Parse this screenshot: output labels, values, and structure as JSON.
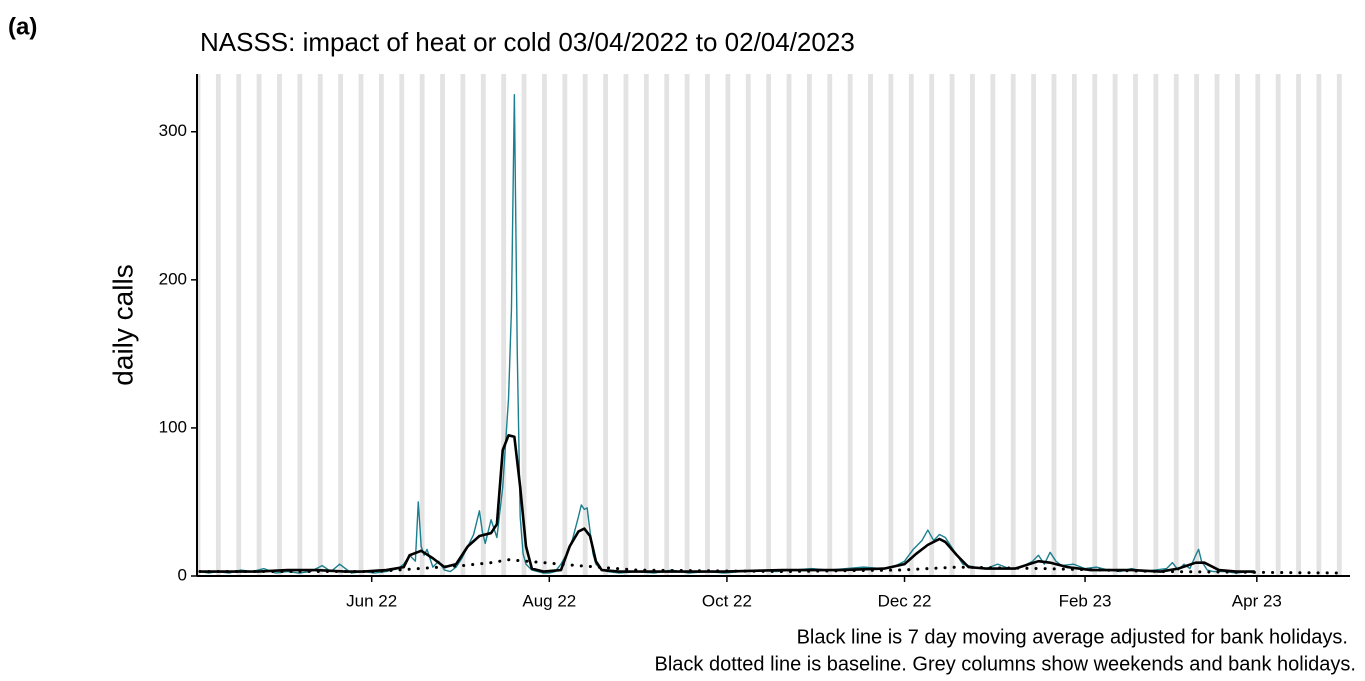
{
  "chart_data": {
    "type": "line",
    "panel_label": "(a)",
    "title": "NASSS: impact of heat or cold 03/04/2022 to 02/04/2023",
    "y_label": "daily calls",
    "notes": [
      "Black line is 7 day moving average adjusted for bank holidays.",
      "Black dotted line is baseline. Grey columns show weekends and bank holidays."
    ],
    "xlim": [
      -1,
      395
    ],
    "xticks": [
      {
        "value": 59,
        "label": "Jun 22"
      },
      {
        "value": 120,
        "label": "Aug 22"
      },
      {
        "value": 181,
        "label": "Oct 22"
      },
      {
        "value": 242,
        "label": "Dec 22"
      },
      {
        "value": 304,
        "label": "Feb 23"
      },
      {
        "value": 363,
        "label": "Apr 23"
      }
    ],
    "ylim": [
      0,
      339
    ],
    "yticks": [
      0,
      100,
      200,
      300
    ],
    "weekend_shading": true,
    "series": [
      {
        "color": "#1b7f8e",
        "line_style": "solid",
        "x": [
          0,
          3,
          6,
          10,
          14,
          18,
          22,
          26,
          30,
          34,
          38,
          42,
          45,
          48,
          52,
          56,
          60,
          64,
          66,
          68,
          70,
          72,
          74,
          75,
          76,
          77,
          78,
          80,
          82,
          84,
          86,
          88,
          90,
          92,
          94,
          96,
          97,
          98,
          100,
          102,
          104,
          105,
          106,
          107,
          108,
          109,
          110,
          111,
          112,
          114,
          116,
          118,
          120,
          122,
          124,
          126,
          128,
          130,
          131,
          132,
          133,
          134,
          135,
          136,
          138,
          140,
          144,
          150,
          156,
          162,
          168,
          174,
          180,
          186,
          192,
          198,
          204,
          210,
          216,
          222,
          228,
          234,
          238,
          242,
          245,
          248,
          250,
          252,
          254,
          256,
          258,
          260,
          262,
          266,
          270,
          274,
          278,
          282,
          286,
          288,
          290,
          292,
          294,
          296,
          300,
          304,
          308,
          312,
          316,
          320,
          324,
          328,
          332,
          334,
          336,
          338,
          340,
          342,
          343,
          344,
          346,
          348,
          352,
          356,
          360,
          362
        ],
        "values": [
          3,
          2,
          3,
          2,
          4,
          3,
          5,
          2,
          3,
          2,
          3,
          7,
          3,
          8,
          2,
          3,
          2,
          3,
          4,
          5,
          8,
          14,
          10,
          50,
          20,
          14,
          18,
          6,
          10,
          4,
          3,
          6,
          12,
          20,
          28,
          44,
          30,
          22,
          38,
          26,
          60,
          90,
          120,
          180,
          325,
          150,
          40,
          15,
          8,
          4,
          3,
          2,
          2,
          3,
          8,
          15,
          25,
          40,
          48,
          45,
          46,
          30,
          15,
          8,
          4,
          3,
          2,
          3,
          2,
          4,
          2,
          3,
          2,
          3,
          4,
          3,
          4,
          5,
          4,
          5,
          6,
          5,
          6,
          10,
          18,
          24,
          31,
          24,
          28,
          26,
          20,
          14,
          8,
          6,
          5,
          8,
          5,
          6,
          10,
          14,
          8,
          16,
          10,
          7,
          8,
          5,
          6,
          4,
          3,
          5,
          3,
          4,
          5,
          9,
          4,
          8,
          5,
          14,
          18,
          10,
          4,
          3,
          3,
          2,
          3,
          2
        ]
      },
      {
        "color": "#000000",
        "line_style": "solid",
        "x": [
          0,
          10,
          20,
          30,
          40,
          50,
          56,
          64,
          70,
          72,
          76,
          80,
          84,
          88,
          92,
          96,
          100,
          102,
          104,
          106,
          108,
          110,
          112,
          114,
          118,
          124,
          127,
          130,
          132,
          134,
          136,
          138,
          144,
          160,
          180,
          200,
          220,
          235,
          242,
          246,
          250,
          254,
          256,
          260,
          264,
          270,
          280,
          288,
          292,
          298,
          306,
          320,
          330,
          336,
          342,
          345,
          350,
          356,
          362
        ],
        "values": [
          3,
          3,
          3,
          4,
          4,
          3,
          3,
          4,
          6,
          14,
          17,
          12,
          6,
          8,
          20,
          27,
          29,
          35,
          85,
          95,
          94,
          60,
          20,
          5,
          3,
          4,
          20,
          30,
          32,
          27,
          10,
          4,
          3,
          3,
          3,
          4,
          4,
          5,
          8,
          15,
          21,
          25,
          23,
          14,
          6,
          5,
          5,
          10,
          9,
          6,
          4,
          4,
          3,
          5,
          9,
          9,
          4,
          3,
          3
        ]
      },
      {
        "color": "#000000",
        "line_style": "dotted",
        "x": [
          0,
          60,
          90,
          100,
          106,
          118,
          130,
          150,
          200,
          240,
          260,
          290,
          330,
          392
        ],
        "values": [
          3,
          3,
          7,
          9,
          11,
          9,
          7,
          4,
          3,
          4,
          6,
          5,
          3,
          2
        ]
      }
    ]
  }
}
